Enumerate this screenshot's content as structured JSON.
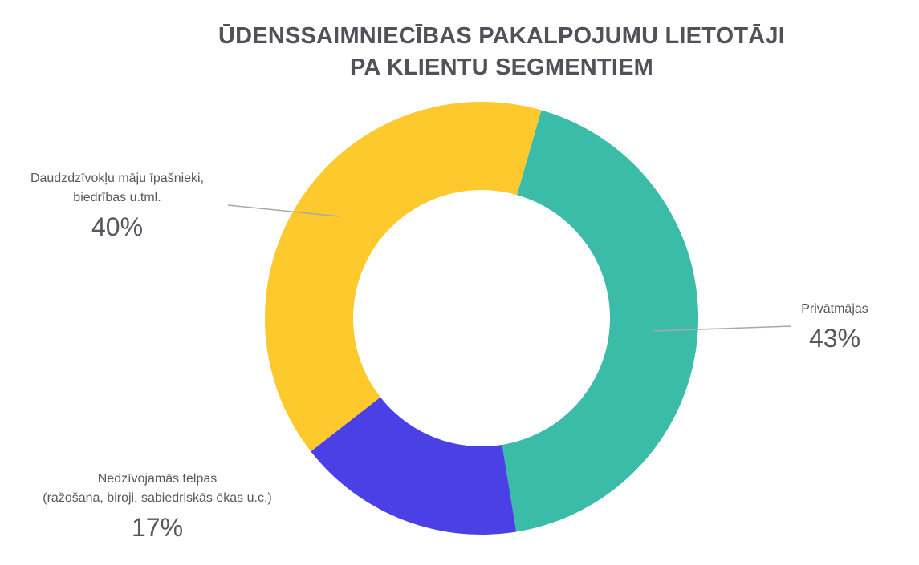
{
  "title": "ŪDENSSAIMNIECĪBAS PAKALPOJUMU LIETOTĀJI\nPA KLIENTU SEGMENTIEM",
  "theme": {
    "background": "#ffffff",
    "title_color": "#515159",
    "text_color": "#57575f",
    "leader_line_color": "#a8a8a8"
  },
  "chart_data": {
    "type": "pie",
    "subtype": "donut",
    "title": "ŪDENSSAIMNIECĪBAS PAKALPOJUMU LIETOTĀJI PA KLIENTU SEGMENTIEM",
    "unit": "%",
    "start_angle_deg": 16,
    "direction": "clockwise",
    "legend_position": "callout-labels",
    "segments": [
      {
        "label": "Privātmājas",
        "value": 43,
        "color": "#3bbca8"
      },
      {
        "label": "Nedzīvojamās telpas (ražošana, biroji, sabiedriskās ēkas u.c.)",
        "value": 17,
        "color": "#4a40e6"
      },
      {
        "label": "Daudzdzīvokļu māju īpašnieki, biedrības u.tml.",
        "value": 40,
        "color": "#fec92d"
      }
    ]
  },
  "callouts": {
    "left": {
      "label": "Daudzdzīvokļu māju īpašnieki,\nbiedrības u.tml.",
      "percent": "40%"
    },
    "right": {
      "label": "Privātmājas",
      "percent": "43%"
    },
    "bottom": {
      "label": "Nedzīvojamās telpas\n(ražošana, biroji, sabiedriskās ēkas u.c.)",
      "percent": "17%"
    }
  }
}
